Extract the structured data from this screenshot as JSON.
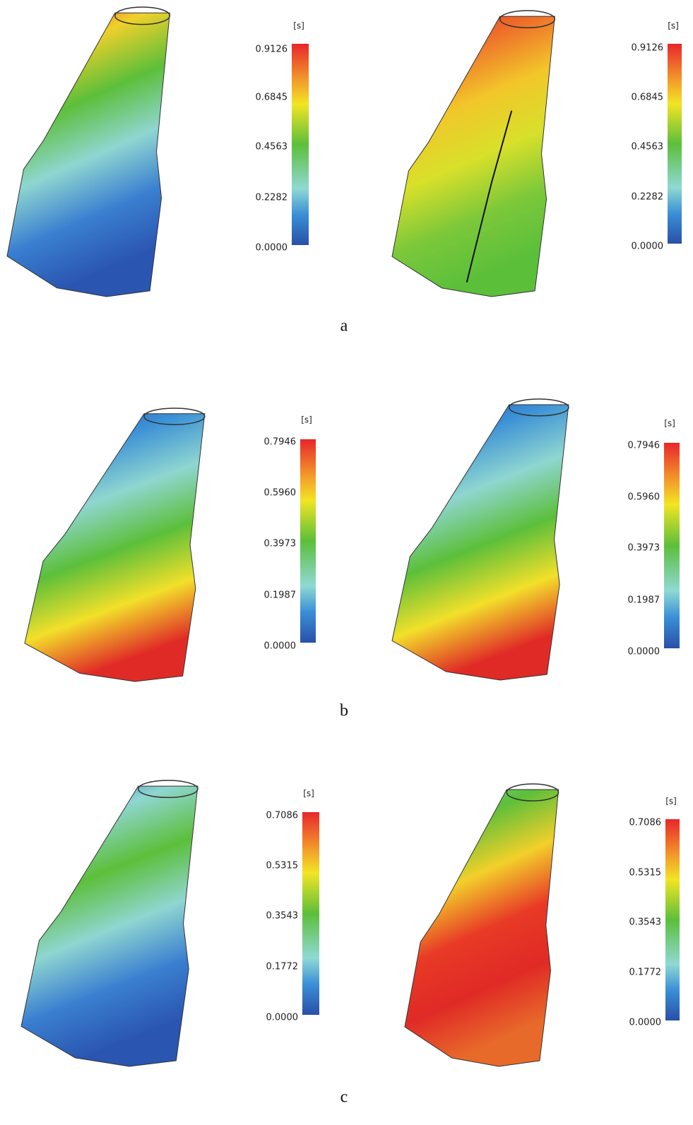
{
  "figure": {
    "rows": [
      {
        "label": "a",
        "panels": [
          {
            "unit": "[s]",
            "ticks": [
              "0.9126",
              "0.6845",
              "0.4563",
              "0.2282",
              "0.0000"
            ]
          },
          {
            "unit": "[s]",
            "ticks": [
              "0.9126",
              "0.6845",
              "0.4563",
              "0.2282",
              "0.0000"
            ]
          }
        ]
      },
      {
        "label": "b",
        "panels": [
          {
            "unit": "[s]",
            "ticks": [
              "0.7946",
              "0.5960",
              "0.3973",
              "0.1987",
              "0.0000"
            ]
          },
          {
            "unit": "[s]",
            "ticks": [
              "0.7946",
              "0.5960",
              "0.3973",
              "0.1987",
              "0.0000"
            ]
          }
        ]
      },
      {
        "label": "c",
        "panels": [
          {
            "unit": "[s]",
            "ticks": [
              "0.7086",
              "0.5315",
              "0.3543",
              "0.1772",
              "0.0000"
            ]
          },
          {
            "unit": "[s]",
            "ticks": [
              "0.7086",
              "0.5315",
              "0.3543",
              "0.1772",
              "0.0000"
            ]
          }
        ]
      }
    ]
  }
}
